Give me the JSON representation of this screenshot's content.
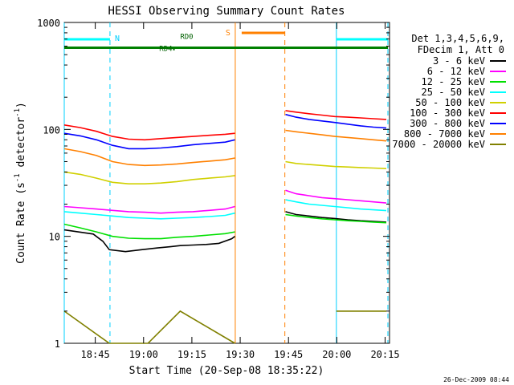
{
  "chart_data": {
    "type": "line",
    "title": "HESSI Observing Summary Count Rates",
    "xlabel": "Start Time (20-Sep-08 18:35:22)",
    "ylabel_main": "Count Rate (s",
    "ylabel_sup1": "-1",
    "ylabel_mid": " detector",
    "ylabel_sup2": "-1",
    "ylabel_end": ")",
    "yscale": "log",
    "ylim": [
      1,
      1000
    ],
    "xlim_minutes": [
      0,
      101
    ],
    "x_tick_minutes": [
      9.63,
      24.63,
      39.63,
      54.63,
      69.63,
      84.63,
      99.63
    ],
    "x_tick_labels": [
      "18:45",
      "19:00",
      "19:15",
      "19:30",
      "19:45",
      "20:00",
      "20:15"
    ],
    "y_tick_values": [
      1,
      10,
      100,
      1000
    ],
    "y_tick_labels": [
      "1",
      "10",
      "100",
      "1000"
    ],
    "legend_header": [
      "Det 1,3,4,5,6,9,",
      "FDecim 1, Att 0"
    ],
    "legend_position": "right",
    "footer_date": "26-Dec-2009 08:44",
    "night_bands": [
      {
        "start": 0,
        "end": 14.2,
        "label": "N"
      },
      {
        "start": 84.5,
        "end": 100.5,
        "label": ""
      }
    ],
    "saa_band": {
      "start": 53.1,
      "end": 68.5,
      "label": "S"
    },
    "decimation_bar": {
      "start": 0,
      "end": 100.5,
      "level": 580
    },
    "annotations": [
      {
        "text": "RD0",
        "x": 36,
        "y": 700
      },
      {
        "text": "RD4",
        "x": 29.5,
        "y": 540
      }
    ],
    "series": [
      {
        "name": "3 - 6 keV",
        "color": "#000000",
        "x": [
          0,
          9,
          12,
          14,
          19,
          24,
          29,
          33,
          36,
          40,
          44,
          48,
          52,
          53
        ],
        "y": [
          11.5,
          10.5,
          9,
          7.5,
          7.2,
          7.5,
          7.8,
          8,
          8.2,
          8.3,
          8.4,
          8.6,
          9.5,
          10
        ],
        "x2": [
          68.7,
          72,
          76,
          80,
          84,
          88,
          92,
          96,
          100
        ],
        "y2": [
          17,
          16,
          15.5,
          15,
          14.7,
          14.3,
          14,
          13.8,
          13.6
        ]
      },
      {
        "name": "6 - 12 keV",
        "color": "#ff00ff",
        "x": [
          0,
          5,
          10,
          15,
          20,
          25,
          30,
          35,
          40,
          45,
          50,
          53
        ],
        "y": [
          19,
          18.5,
          18,
          17.5,
          17,
          16.8,
          16.5,
          16.8,
          17,
          17.5,
          18,
          19
        ],
        "x2": [
          68.7,
          72,
          76,
          80,
          84,
          88,
          92,
          96,
          100
        ],
        "y2": [
          27,
          25,
          24,
          23,
          22.5,
          22,
          21.5,
          21,
          20.5
        ]
      },
      {
        "name": "12 - 25 keV",
        "color": "#00e000",
        "x": [
          0,
          5,
          10,
          15,
          20,
          25,
          30,
          35,
          40,
          45,
          50,
          53
        ],
        "y": [
          13,
          12,
          11,
          10,
          9.6,
          9.5,
          9.5,
          9.8,
          10,
          10.3,
          10.6,
          11
        ],
        "x2": [
          68.7,
          72,
          76,
          80,
          84,
          88,
          92,
          96,
          100
        ],
        "y2": [
          16,
          15.5,
          15,
          14.6,
          14.3,
          14,
          13.8,
          13.6,
          13.4
        ]
      },
      {
        "name": "25 - 50 keV",
        "color": "#00ffff",
        "x": [
          0,
          5,
          10,
          15,
          20,
          25,
          30,
          35,
          40,
          45,
          50,
          53
        ],
        "y": [
          17,
          16.5,
          16,
          15.5,
          15,
          14.8,
          14.6,
          14.8,
          15,
          15.3,
          15.7,
          16.5
        ],
        "x2": [
          68.7,
          72,
          76,
          80,
          84,
          88,
          92,
          96,
          100
        ],
        "y2": [
          22,
          21,
          20,
          19.5,
          19,
          18.5,
          18,
          17.7,
          17.4
        ]
      },
      {
        "name": "50 - 100 keV",
        "color": "#d0d000",
        "x": [
          0,
          5,
          10,
          15,
          20,
          25,
          30,
          35,
          40,
          45,
          50,
          53
        ],
        "y": [
          40,
          38,
          35,
          32,
          31,
          31,
          31.5,
          32.5,
          34,
          35,
          36,
          37
        ],
        "x2": [
          68.7,
          72,
          76,
          80,
          84,
          88,
          92,
          96,
          100
        ],
        "y2": [
          50,
          48,
          47,
          46,
          45,
          44.5,
          44,
          43.5,
          43
        ]
      },
      {
        "name": "100 - 300 keV",
        "color": "#ff0000",
        "x": [
          0,
          5,
          10,
          15,
          20,
          25,
          30,
          35,
          40,
          45,
          50,
          53
        ],
        "y": [
          110,
          104,
          96,
          86,
          81,
          80,
          82,
          84,
          86,
          88,
          90,
          92
        ],
        "x2": [
          68.7,
          72,
          76,
          80,
          84,
          88,
          92,
          96,
          100
        ],
        "y2": [
          150,
          145,
          140,
          136,
          132,
          130,
          128,
          126,
          124
        ]
      },
      {
        "name": "300 - 800 keV",
        "color": "#0000ff",
        "x": [
          0,
          5,
          10,
          15,
          20,
          25,
          30,
          35,
          40,
          45,
          50,
          53
        ],
        "y": [
          92,
          87,
          80,
          71,
          66,
          66,
          67,
          69,
          72,
          74,
          76,
          80
        ],
        "x2": [
          68.7,
          72,
          76,
          80,
          84,
          88,
          92,
          96,
          100
        ],
        "y2": [
          138,
          130,
          124,
          120,
          116,
          112,
          108,
          105,
          103
        ]
      },
      {
        "name": "800 - 7000 keV",
        "color": "#ff8000",
        "x": [
          0,
          5,
          10,
          15,
          20,
          25,
          30,
          35,
          40,
          45,
          50,
          53
        ],
        "y": [
          66,
          62,
          57,
          50,
          47,
          46,
          46.5,
          47.5,
          49,
          50.5,
          52,
          54
        ],
        "x2": [
          68.7,
          72,
          76,
          80,
          84,
          88,
          92,
          96,
          100
        ],
        "y2": [
          98,
          95,
          92,
          89,
          86,
          84,
          82,
          80,
          78
        ]
      },
      {
        "name": "7000 - 20000 keV",
        "color": "#808000",
        "x": [
          0,
          14,
          26,
          36,
          53
        ],
        "y": [
          2,
          1,
          1,
          2,
          1
        ],
        "x2": [
          84.5,
          100
        ],
        "y2": [
          2,
          2
        ]
      }
    ]
  }
}
